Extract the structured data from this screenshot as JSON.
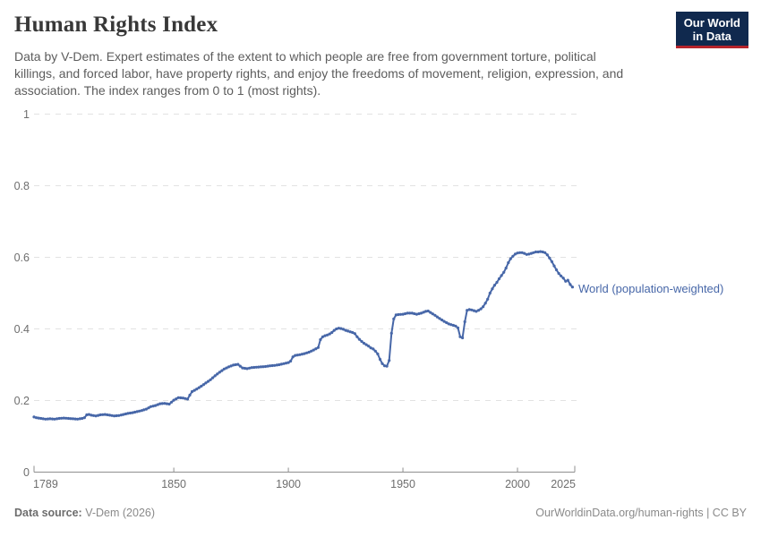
{
  "header": {
    "title": "Human Rights Index",
    "subtitle_lines": [
      "Data by V-Dem. Expert estimates of the extent to which people are free from government torture, political",
      "killings, and forced labor, have property rights, and enjoy the freedoms of movement, religion, expression, and",
      "association. The index ranges from 0 to 1 (most rights)."
    ],
    "logo": {
      "line1": "Our World",
      "line2": "in Data"
    }
  },
  "chart_data": {
    "type": "line",
    "title": "Human Rights Index",
    "xlabel": "",
    "ylabel": "",
    "xlim": [
      1789,
      2025
    ],
    "ylim": [
      0,
      1
    ],
    "grid": "horizontal-dashed",
    "legend_position": "end-of-line-label",
    "x_ticks": [
      1789,
      1850,
      1900,
      1950,
      2000,
      2025
    ],
    "x_tick_labels": [
      "1789",
      "1850",
      "1900",
      "1950",
      "2000",
      "2025"
    ],
    "y_ticks": [
      0,
      0.2,
      0.4,
      0.6,
      0.8,
      1
    ],
    "y_tick_labels": [
      "0",
      "0.2",
      "0.4",
      "0.6",
      "0.8",
      "1"
    ],
    "series": [
      {
        "name": "World (population-weighted)",
        "color": "#4767a8",
        "markers": true,
        "points": [
          [
            1789,
            0.154
          ],
          [
            1790,
            0.152
          ],
          [
            1792,
            0.15
          ],
          [
            1794,
            0.148
          ],
          [
            1796,
            0.149
          ],
          [
            1798,
            0.148
          ],
          [
            1800,
            0.15
          ],
          [
            1802,
            0.151
          ],
          [
            1804,
            0.15
          ],
          [
            1806,
            0.149
          ],
          [
            1808,
            0.148
          ],
          [
            1810,
            0.15
          ],
          [
            1811,
            0.152
          ],
          [
            1812,
            0.16
          ],
          [
            1813,
            0.161
          ],
          [
            1814,
            0.159
          ],
          [
            1816,
            0.157
          ],
          [
            1818,
            0.16
          ],
          [
            1820,
            0.161
          ],
          [
            1822,
            0.159
          ],
          [
            1824,
            0.157
          ],
          [
            1826,
            0.158
          ],
          [
            1828,
            0.161
          ],
          [
            1830,
            0.164
          ],
          [
            1832,
            0.166
          ],
          [
            1834,
            0.169
          ],
          [
            1836,
            0.172
          ],
          [
            1838,
            0.176
          ],
          [
            1840,
            0.183
          ],
          [
            1842,
            0.186
          ],
          [
            1844,
            0.191
          ],
          [
            1846,
            0.192
          ],
          [
            1848,
            0.19
          ],
          [
            1850,
            0.201
          ],
          [
            1852,
            0.208
          ],
          [
            1854,
            0.207
          ],
          [
            1856,
            0.204
          ],
          [
            1857,
            0.215
          ],
          [
            1858,
            0.225
          ],
          [
            1860,
            0.232
          ],
          [
            1862,
            0.24
          ],
          [
            1864,
            0.249
          ],
          [
            1866,
            0.258
          ],
          [
            1868,
            0.269
          ],
          [
            1870,
            0.279
          ],
          [
            1872,
            0.288
          ],
          [
            1874,
            0.294
          ],
          [
            1876,
            0.299
          ],
          [
            1878,
            0.301
          ],
          [
            1880,
            0.291
          ],
          [
            1882,
            0.289
          ],
          [
            1884,
            0.292
          ],
          [
            1886,
            0.293
          ],
          [
            1888,
            0.294
          ],
          [
            1890,
            0.295
          ],
          [
            1892,
            0.297
          ],
          [
            1894,
            0.298
          ],
          [
            1896,
            0.3
          ],
          [
            1898,
            0.303
          ],
          [
            1900,
            0.306
          ],
          [
            1901,
            0.31
          ],
          [
            1902,
            0.322
          ],
          [
            1903,
            0.326
          ],
          [
            1905,
            0.328
          ],
          [
            1907,
            0.331
          ],
          [
            1909,
            0.335
          ],
          [
            1911,
            0.341
          ],
          [
            1913,
            0.348
          ],
          [
            1914,
            0.37
          ],
          [
            1915,
            0.378
          ],
          [
            1916,
            0.381
          ],
          [
            1917,
            0.383
          ],
          [
            1918,
            0.386
          ],
          [
            1919,
            0.39
          ],
          [
            1920,
            0.396
          ],
          [
            1921,
            0.4
          ],
          [
            1922,
            0.402
          ],
          [
            1923,
            0.401
          ],
          [
            1924,
            0.399
          ],
          [
            1925,
            0.396
          ],
          [
            1926,
            0.394
          ],
          [
            1927,
            0.392
          ],
          [
            1928,
            0.39
          ],
          [
            1929,
            0.387
          ],
          [
            1930,
            0.378
          ],
          [
            1931,
            0.371
          ],
          [
            1932,
            0.365
          ],
          [
            1933,
            0.36
          ],
          [
            1934,
            0.356
          ],
          [
            1935,
            0.352
          ],
          [
            1936,
            0.347
          ],
          [
            1937,
            0.344
          ],
          [
            1938,
            0.338
          ],
          [
            1939,
            0.33
          ],
          [
            1940,
            0.315
          ],
          [
            1941,
            0.303
          ],
          [
            1942,
            0.297
          ],
          [
            1943,
            0.296
          ],
          [
            1944,
            0.312
          ],
          [
            1945,
            0.388
          ],
          [
            1946,
            0.428
          ],
          [
            1947,
            0.439
          ],
          [
            1948,
            0.44
          ],
          [
            1950,
            0.441
          ],
          [
            1952,
            0.444
          ],
          [
            1954,
            0.444
          ],
          [
            1956,
            0.441
          ],
          [
            1958,
            0.444
          ],
          [
            1960,
            0.449
          ],
          [
            1961,
            0.45
          ],
          [
            1962,
            0.446
          ],
          [
            1964,
            0.438
          ],
          [
            1966,
            0.429
          ],
          [
            1968,
            0.421
          ],
          [
            1970,
            0.414
          ],
          [
            1972,
            0.41
          ],
          [
            1973,
            0.408
          ],
          [
            1974,
            0.403
          ],
          [
            1975,
            0.378
          ],
          [
            1976,
            0.375
          ],
          [
            1977,
            0.42
          ],
          [
            1978,
            0.452
          ],
          [
            1979,
            0.454
          ],
          [
            1980,
            0.453
          ],
          [
            1981,
            0.451
          ],
          [
            1982,
            0.449
          ],
          [
            1983,
            0.452
          ],
          [
            1984,
            0.456
          ],
          [
            1985,
            0.462
          ],
          [
            1986,
            0.472
          ],
          [
            1987,
            0.483
          ],
          [
            1988,
            0.5
          ],
          [
            1989,
            0.512
          ],
          [
            1990,
            0.522
          ],
          [
            1991,
            0.53
          ],
          [
            1992,
            0.54
          ],
          [
            1993,
            0.549
          ],
          [
            1994,
            0.558
          ],
          [
            1995,
            0.57
          ],
          [
            1996,
            0.585
          ],
          [
            1997,
            0.596
          ],
          [
            1998,
            0.603
          ],
          [
            1999,
            0.609
          ],
          [
            2000,
            0.612
          ],
          [
            2001,
            0.613
          ],
          [
            2002,
            0.613
          ],
          [
            2003,
            0.611
          ],
          [
            2004,
            0.608
          ],
          [
            2005,
            0.609
          ],
          [
            2006,
            0.611
          ],
          [
            2007,
            0.613
          ],
          [
            2008,
            0.615
          ],
          [
            2009,
            0.615
          ],
          [
            2010,
            0.616
          ],
          [
            2011,
            0.615
          ],
          [
            2012,
            0.613
          ],
          [
            2013,
            0.607
          ],
          [
            2014,
            0.598
          ],
          [
            2015,
            0.588
          ],
          [
            2016,
            0.576
          ],
          [
            2017,
            0.565
          ],
          [
            2018,
            0.555
          ],
          [
            2019,
            0.548
          ],
          [
            2020,
            0.542
          ],
          [
            2021,
            0.533
          ],
          [
            2022,
            0.536
          ],
          [
            2023,
            0.524
          ],
          [
            2024,
            0.517
          ]
        ]
      }
    ]
  },
  "footer": {
    "source_label": "Data source:",
    "source_value": " V-Dem (2026)",
    "right_text": "OurWorldinData.org/human-rights | CC BY"
  },
  "colors": {
    "line": "#4767a8",
    "label": "#4767a8",
    "logo_bg": "#10294e",
    "logo_accent": "#b5232b",
    "grid": "#e2e2e2",
    "axis": "#8f8f8f",
    "tick_text": "#6e6e6e",
    "title_text": "#383838",
    "subtitle_text": "#5c5c5c",
    "footer_text": "#8a8a8a",
    "footer_label": "#6d6d6d",
    "bg": "#ffffff"
  }
}
